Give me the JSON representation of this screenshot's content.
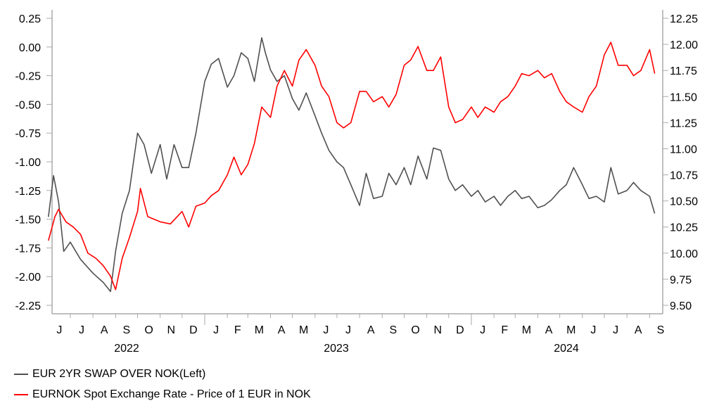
{
  "chart_data": {
    "type": "line",
    "title": "",
    "xlabel": "",
    "x_month_labels": [
      "J",
      "J",
      "A",
      "S",
      "O",
      "N",
      "D",
      "J",
      "F",
      "M",
      "A",
      "M",
      "J",
      "J",
      "A",
      "S",
      "O",
      "N",
      "D",
      "J",
      "F",
      "M",
      "A",
      "M",
      "J",
      "J",
      "A",
      "S"
    ],
    "x_year_labels": [
      "2022",
      "2023",
      "2024"
    ],
    "x_range": [
      "2022-06-01",
      "2024-09-10"
    ],
    "left_axis": {
      "ylim": [
        -2.25,
        0.25
      ],
      "ticks": [
        "0.25",
        "0.00",
        "-0.25",
        "-0.50",
        "-0.75",
        "-1.00",
        "-1.25",
        "-1.50",
        "-1.75",
        "-2.00",
        "-2.25"
      ]
    },
    "right_axis": {
      "ylim": [
        9.5,
        12.25
      ],
      "ticks": [
        "12.25",
        "12.00",
        "11.75",
        "11.50",
        "11.25",
        "11.00",
        "10.75",
        "10.50",
        "10.25",
        "10.00",
        "9.75",
        "9.50"
      ]
    },
    "grid": false,
    "legend_position": "bottom-left",
    "series": [
      {
        "name": "EUR 2YR SWAP OVER NOK(Left)",
        "axis": "left",
        "color": "#505050",
        "x": [
          "2022-06-01",
          "2022-06-08",
          "2022-06-15",
          "2022-06-22",
          "2022-07-01",
          "2022-07-15",
          "2022-08-01",
          "2022-08-15",
          "2022-08-25",
          "2022-09-01",
          "2022-09-10",
          "2022-09-20",
          "2022-10-01",
          "2022-10-10",
          "2022-10-20",
          "2022-11-01",
          "2022-11-10",
          "2022-11-20",
          "2022-12-01",
          "2022-12-10",
          "2022-12-20",
          "2023-01-01",
          "2023-01-10",
          "2023-01-20",
          "2023-02-01",
          "2023-02-10",
          "2023-02-20",
          "2023-03-01",
          "2023-03-10",
          "2023-03-20",
          "2023-03-25",
          "2023-04-01",
          "2023-04-10",
          "2023-04-20",
          "2023-05-01",
          "2023-05-10",
          "2023-05-20",
          "2023-06-01",
          "2023-06-10",
          "2023-06-20",
          "2023-07-01",
          "2023-07-10",
          "2023-07-20",
          "2023-08-01",
          "2023-08-10",
          "2023-08-20",
          "2023-09-01",
          "2023-09-10",
          "2023-09-20",
          "2023-10-01",
          "2023-10-10",
          "2023-10-20",
          "2023-11-01",
          "2023-11-10",
          "2023-11-20",
          "2023-12-01",
          "2023-12-10",
          "2023-12-20",
          "2024-01-01",
          "2024-01-10",
          "2024-01-20",
          "2024-02-01",
          "2024-02-10",
          "2024-02-20",
          "2024-03-01",
          "2024-03-10",
          "2024-03-20",
          "2024-04-01",
          "2024-04-10",
          "2024-04-20",
          "2024-05-01",
          "2024-05-10",
          "2024-05-20",
          "2024-06-01",
          "2024-06-10",
          "2024-06-20",
          "2024-07-01",
          "2024-07-10",
          "2024-07-20",
          "2024-08-01",
          "2024-08-10",
          "2024-08-20",
          "2024-09-01",
          "2024-09-08"
        ],
        "values": [
          -1.48,
          -1.12,
          -1.35,
          -1.78,
          -1.7,
          -1.85,
          -1.97,
          -2.05,
          -2.13,
          -1.78,
          -1.45,
          -1.25,
          -0.75,
          -0.85,
          -1.1,
          -0.85,
          -1.15,
          -0.85,
          -1.05,
          -1.05,
          -0.75,
          -0.3,
          -0.15,
          -0.1,
          -0.35,
          -0.25,
          -0.05,
          -0.1,
          -0.3,
          0.08,
          -0.05,
          -0.2,
          -0.3,
          -0.25,
          -0.45,
          -0.55,
          -0.4,
          -0.6,
          -0.75,
          -0.9,
          -1.0,
          -1.05,
          -1.2,
          -1.38,
          -1.1,
          -1.32,
          -1.3,
          -1.1,
          -1.2,
          -1.05,
          -1.2,
          -0.95,
          -1.15,
          -0.88,
          -0.9,
          -1.15,
          -1.25,
          -1.2,
          -1.3,
          -1.25,
          -1.35,
          -1.3,
          -1.38,
          -1.3,
          -1.25,
          -1.32,
          -1.3,
          -1.4,
          -1.38,
          -1.33,
          -1.25,
          -1.2,
          -1.05,
          -1.2,
          -1.32,
          -1.3,
          -1.35,
          -1.05,
          -1.28,
          -1.25,
          -1.18,
          -1.25,
          -1.3,
          -1.45
        ]
      },
      {
        "name": "EURNOK Spot Exchange Rate - Price of 1 EUR in NOK",
        "axis": "right",
        "color": "#ff0000",
        "x": [
          "2022-06-01",
          "2022-06-10",
          "2022-06-15",
          "2022-06-25",
          "2022-07-05",
          "2022-07-15",
          "2022-07-25",
          "2022-08-05",
          "2022-08-15",
          "2022-08-25",
          "2022-09-01",
          "2022-09-10",
          "2022-09-20",
          "2022-10-01",
          "2022-10-05",
          "2022-10-15",
          "2022-11-01",
          "2022-11-15",
          "2022-12-01",
          "2022-12-10",
          "2022-12-20",
          "2023-01-01",
          "2023-01-10",
          "2023-01-20",
          "2023-02-01",
          "2023-02-10",
          "2023-02-20",
          "2023-03-01",
          "2023-03-10",
          "2023-03-20",
          "2023-04-01",
          "2023-04-10",
          "2023-04-20",
          "2023-05-01",
          "2023-05-10",
          "2023-05-20",
          "2023-06-01",
          "2023-06-10",
          "2023-06-20",
          "2023-07-01",
          "2023-07-10",
          "2023-07-20",
          "2023-08-01",
          "2023-08-10",
          "2023-08-20",
          "2023-09-01",
          "2023-09-10",
          "2023-09-20",
          "2023-10-01",
          "2023-10-10",
          "2023-10-20",
          "2023-11-01",
          "2023-11-10",
          "2023-11-20",
          "2023-12-01",
          "2023-12-10",
          "2023-12-20",
          "2024-01-01",
          "2024-01-10",
          "2024-01-20",
          "2024-02-01",
          "2024-02-10",
          "2024-02-20",
          "2024-03-01",
          "2024-03-10",
          "2024-03-20",
          "2024-04-01",
          "2024-04-10",
          "2024-04-20",
          "2024-05-01",
          "2024-05-10",
          "2024-05-20",
          "2024-06-01",
          "2024-06-10",
          "2024-06-20",
          "2024-07-01",
          "2024-07-10",
          "2024-07-20",
          "2024-08-01",
          "2024-08-10",
          "2024-08-20",
          "2024-09-01",
          "2024-09-08"
        ],
        "values": [
          10.12,
          10.35,
          10.42,
          10.3,
          10.25,
          10.18,
          10.0,
          9.95,
          9.88,
          9.78,
          9.65,
          9.95,
          10.15,
          10.4,
          10.62,
          10.35,
          10.3,
          10.28,
          10.4,
          10.25,
          10.45,
          10.48,
          10.55,
          10.6,
          10.75,
          10.92,
          10.75,
          10.85,
          11.05,
          11.4,
          11.3,
          11.6,
          11.75,
          11.6,
          11.85,
          11.95,
          11.8,
          11.6,
          11.5,
          11.25,
          11.2,
          11.25,
          11.55,
          11.55,
          11.45,
          11.5,
          11.4,
          11.52,
          11.8,
          11.85,
          11.98,
          11.75,
          11.75,
          11.88,
          11.4,
          11.25,
          11.28,
          11.4,
          11.3,
          11.4,
          11.35,
          11.45,
          11.5,
          11.6,
          11.72,
          11.7,
          11.75,
          11.68,
          11.72,
          11.55,
          11.45,
          11.4,
          11.35,
          11.5,
          11.6,
          11.9,
          12.02,
          11.8,
          11.8,
          11.7,
          11.75,
          11.95,
          11.72
        ]
      }
    ]
  }
}
